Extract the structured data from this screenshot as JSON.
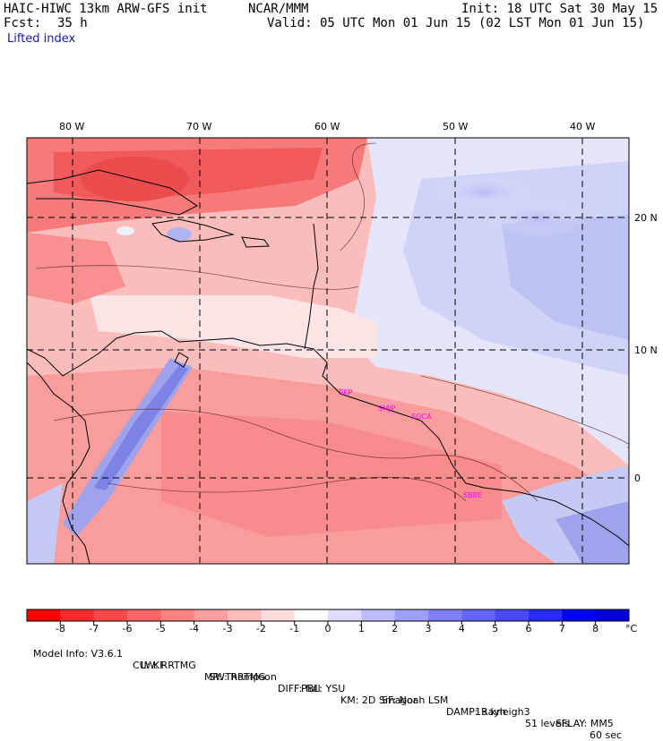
{
  "header": {
    "model": "HAIC-HIWC 13km ARW-GFS init",
    "org": "NCAR/MMM",
    "init": "Init: 18 UTC Sat 30 May 15",
    "fcst_label": "Fcst:",
    "fcst_value": "35 h",
    "valid": "Valid: 05 UTC Mon 01 Jun 15 (02 LST Mon 01 Jun 15)",
    "field": "Lifted index"
  },
  "map": {
    "lon_labels": [
      "80 W",
      "70 W",
      "60 W",
      "50 W",
      "40 W"
    ],
    "lat_labels": [
      "20 N",
      "10 N",
      "0"
    ],
    "cities": [
      "SKP",
      "SMJP",
      "SOCA",
      "SBBE"
    ]
  },
  "colorbar": {
    "ticks": [
      "-8",
      "-7",
      "-6",
      "-5",
      "-4",
      "-3",
      "-2",
      "-1",
      "0",
      "1",
      "2",
      "3",
      "4",
      "5",
      "6",
      "7",
      "8"
    ],
    "unit": "°C",
    "colors": [
      "#ff0000",
      "#ff2a2a",
      "#ff4848",
      "#ff6464",
      "#ff8080",
      "#ff9e9e",
      "#ffbcbc",
      "#ffdcdc",
      "#ffffff",
      "#dcdcff",
      "#bcbcff",
      "#9e9eff",
      "#8080ff",
      "#6464ff",
      "#4848ff",
      "#2a2aff",
      "#0000ff",
      "#0000dd"
    ]
  },
  "footer": {
    "line1": [
      "Model Info: V3.6.1",
      "CU: KF",
      "MP: Thompson",
      "PBL: YSU",
      "SF: Noah LSM",
      "13 km",
      "51 levels",
      "60 sec"
    ],
    "line2": [
      "LW: RRTMG",
      "SW: RRTMG",
      "DIFF: full",
      "KM: 2D Smagor",
      "DAMP: Rayleigh3",
      "SFLAY: MM5"
    ]
  }
}
